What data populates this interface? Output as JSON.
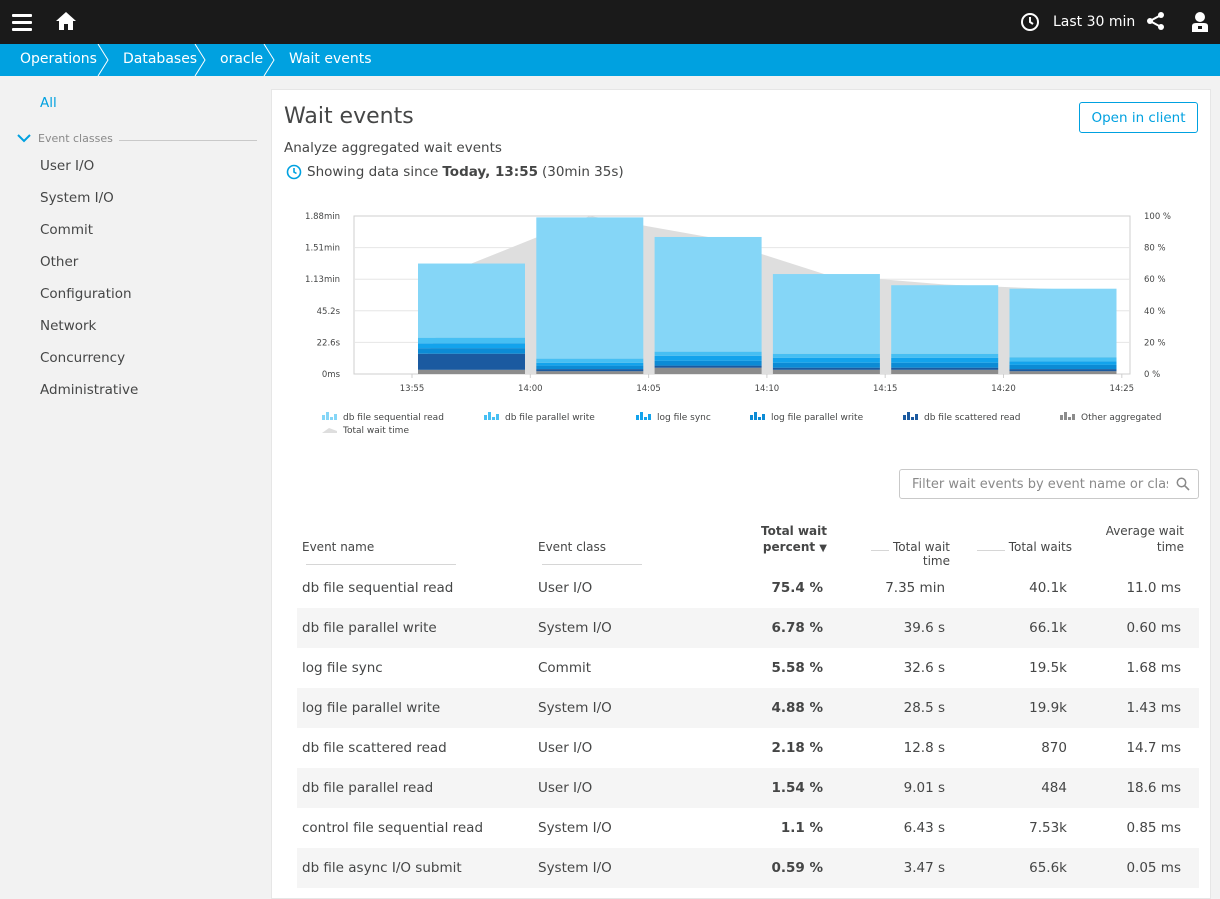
{
  "topbar": {
    "timeframe": "Last 30 min"
  },
  "breadcrumb": [
    "Operations",
    "Databases",
    "oracle",
    "Wait events"
  ],
  "sidebar": {
    "all": "All",
    "section": "Event classes",
    "items": [
      "User I/O",
      "System I/O",
      "Commit",
      "Other",
      "Configuration",
      "Network",
      "Concurrency",
      "Administrative"
    ]
  },
  "page": {
    "title": "Wait events",
    "subtitle": "Analyze aggregated wait events",
    "showing_prefix": "Showing data since",
    "showing_bold": "Today, 13:55",
    "showing_suffix": "(30min 35s)",
    "open_button": "Open in client"
  },
  "filter": {
    "placeholder": "Filter wait events by event name or class"
  },
  "table": {
    "headers": {
      "event_name": "Event name",
      "event_class": "Event class",
      "percent_line1": "Total wait",
      "percent_line2": "percent",
      "percent_sort": "▼",
      "total_time": "Total wait time",
      "total_waits": "Total waits",
      "avg_line1": "Average wait",
      "avg_line2": "time"
    },
    "rows": [
      {
        "name": "db file sequential read",
        "cls": "User I/O",
        "pct": "75.4 %",
        "time": "7.35 min",
        "waits": "40.1k",
        "avg": "11.0 ms"
      },
      {
        "name": "db file parallel write",
        "cls": "System I/O",
        "pct": "6.78 %",
        "time": "39.6 s",
        "waits": "66.1k",
        "avg": "0.60 ms"
      },
      {
        "name": "log file sync",
        "cls": "Commit",
        "pct": "5.58 %",
        "time": "32.6 s",
        "waits": "19.5k",
        "avg": "1.68 ms"
      },
      {
        "name": "log file parallel write",
        "cls": "System I/O",
        "pct": "4.88 %",
        "time": "28.5 s",
        "waits": "19.9k",
        "avg": "1.43 ms"
      },
      {
        "name": "db file scattered read",
        "cls": "User I/O",
        "pct": "2.18 %",
        "time": "12.8 s",
        "waits": "870",
        "avg": "14.7 ms"
      },
      {
        "name": "db file parallel read",
        "cls": "User I/O",
        "pct": "1.54 %",
        "time": "9.01 s",
        "waits": "484",
        "avg": "18.6 ms"
      },
      {
        "name": "control file sequential read",
        "cls": "System I/O",
        "pct": "1.1 %",
        "time": "6.43 s",
        "waits": "7.53k",
        "avg": "0.85 ms"
      },
      {
        "name": "db file async I/O submit",
        "cls": "System I/O",
        "pct": "0.59 %",
        "time": "3.47 s",
        "waits": "65.6k",
        "avg": "0.05 ms"
      }
    ]
  },
  "chart_data": {
    "type": "bar",
    "stacked": true,
    "categories": [
      "13:55",
      "14:00",
      "14:05",
      "14:10",
      "14:15",
      "14:20"
    ],
    "x_ticks": [
      "13:55",
      "14:00",
      "14:05",
      "14:10",
      "14:15",
      "14:20",
      "14:25"
    ],
    "y_ticks_left": [
      "0ms",
      "22.6s",
      "45.2s",
      "1.13min",
      "1.51min",
      "1.88min"
    ],
    "y_ticks_right": [
      "0 %",
      "20 %",
      "40 %",
      "60 %",
      "80 %",
      "100 %"
    ],
    "ylim_seconds": [
      0,
      113
    ],
    "series": [
      {
        "name": "Other aggregated",
        "color": "#8c8c8c",
        "values": [
          3,
          2,
          4.5,
          3,
          3,
          2
        ]
      },
      {
        "name": "db file scattered read",
        "color": "#1b5aa0",
        "values": [
          11.5,
          1.5,
          1.5,
          1.5,
          1.5,
          1.5
        ]
      },
      {
        "name": "log file parallel write",
        "color": "#0c8bd5",
        "values": [
          4,
          2.5,
          3.5,
          3.5,
          3.5,
          3
        ]
      },
      {
        "name": "log file sync",
        "color": "#13a3ec",
        "values": [
          3.5,
          2,
          3.5,
          3.5,
          3.5,
          2.5
        ]
      },
      {
        "name": "db file parallel write",
        "color": "#46bff3",
        "values": [
          4,
          3,
          3,
          3,
          3,
          3
        ]
      },
      {
        "name": "db file sequential read",
        "color": "#85d6f7",
        "values": [
          53,
          101,
          82,
          57,
          49,
          49
        ]
      }
    ],
    "total_wait_time": {
      "name": "Total wait time",
      "color": "#dedede",
      "values": [
        79,
        113,
        98,
        71,
        64,
        60.5
      ]
    },
    "legend": [
      "db file sequential read",
      "db file parallel write",
      "log file sync",
      "log file parallel write",
      "db file scattered read",
      "Other aggregated",
      "Total wait time"
    ]
  }
}
